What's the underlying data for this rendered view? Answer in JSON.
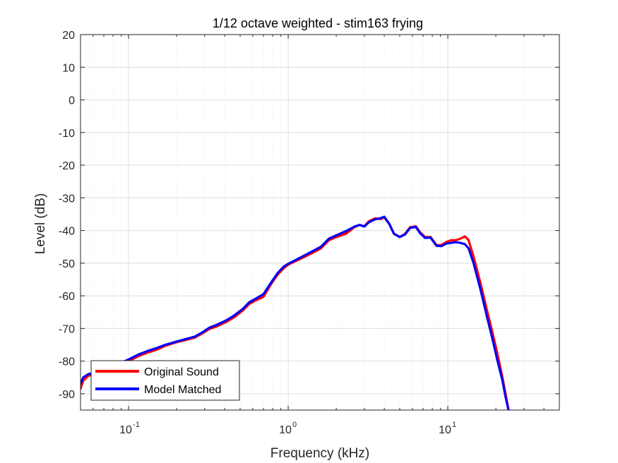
{
  "chart_data": {
    "type": "line",
    "title": "1/12 octave weighted - stim163 frying",
    "xlabel": "Frequency (kHz)",
    "ylabel": "Level (dB)",
    "xscale": "log",
    "xlim": [
      0.05,
      50
    ],
    "ylim": [
      -95,
      20
    ],
    "grid": true,
    "legend_position": "bottom-left",
    "x_ticks": [
      {
        "value": 0.1,
        "base": "10",
        "exp": "-1"
      },
      {
        "value": 1,
        "base": "10",
        "exp": "0"
      },
      {
        "value": 10,
        "base": "10",
        "exp": "1"
      }
    ],
    "y_ticks": [
      20,
      10,
      0,
      -10,
      -20,
      -30,
      -40,
      -50,
      -60,
      -70,
      -80,
      -90
    ],
    "y_tick_labels": [
      "20",
      "10",
      "0",
      "-10",
      "-20",
      "-30",
      "-40",
      "-50",
      "-60",
      "-70",
      "-80",
      "-90"
    ],
    "series": [
      {
        "name": "Original Sound",
        "color": "#ff0000",
        "x": [
          0.05,
          0.052,
          0.056,
          0.062,
          0.07,
          0.08,
          0.09,
          0.1,
          0.115,
          0.13,
          0.15,
          0.17,
          0.2,
          0.23,
          0.26,
          0.29,
          0.32,
          0.36,
          0.41,
          0.46,
          0.52,
          0.57,
          0.62,
          0.7,
          0.78,
          0.86,
          0.94,
          1.0,
          1.1,
          1.25,
          1.4,
          1.6,
          1.8,
          2.0,
          2.3,
          2.6,
          2.8,
          3.0,
          3.2,
          3.5,
          3.8,
          4.0,
          4.3,
          4.6,
          5.0,
          5.4,
          5.8,
          6.3,
          6.7,
          7.2,
          7.8,
          8.5,
          9.1,
          9.8,
          10.5,
          11.2,
          12.0,
          12.8,
          13.5,
          14.5,
          16.0,
          17.5,
          19.0,
          20.5,
          22.0,
          23.0,
          24.0
        ],
        "y": [
          -88.5,
          -86,
          -84.5,
          -84,
          -83,
          -82,
          -81,
          -80,
          -78.5,
          -77.5,
          -76.5,
          -75.3,
          -74.2,
          -73.5,
          -72.8,
          -71.5,
          -70.2,
          -69.3,
          -68,
          -66.5,
          -64.5,
          -62.5,
          -61.5,
          -60.3,
          -56.5,
          -53.5,
          -51.5,
          -50.5,
          -49.5,
          -48.2,
          -47,
          -45.5,
          -43,
          -42,
          -41,
          -39,
          -38.3,
          -38.7,
          -37.2,
          -36.3,
          -36.5,
          -36,
          -38,
          -41,
          -42,
          -41,
          -39,
          -38.7,
          -40.5,
          -42,
          -42,
          -44.5,
          -44.5,
          -43.5,
          -43,
          -43,
          -42.5,
          -41.8,
          -43,
          -48,
          -56,
          -64,
          -71,
          -78,
          -85,
          -90,
          -95
        ]
      },
      {
        "name": "Model Matched",
        "color": "#0000ff",
        "x": [
          0.05,
          0.052,
          0.056,
          0.062,
          0.07,
          0.08,
          0.09,
          0.1,
          0.115,
          0.13,
          0.15,
          0.17,
          0.2,
          0.23,
          0.26,
          0.29,
          0.32,
          0.36,
          0.41,
          0.46,
          0.52,
          0.57,
          0.62,
          0.7,
          0.78,
          0.86,
          0.94,
          1.0,
          1.1,
          1.25,
          1.4,
          1.6,
          1.8,
          2.0,
          2.3,
          2.6,
          2.8,
          3.0,
          3.2,
          3.5,
          3.8,
          4.0,
          4.3,
          4.6,
          5.0,
          5.4,
          5.8,
          6.3,
          6.7,
          7.2,
          7.8,
          8.5,
          9.1,
          9.8,
          10.5,
          11.2,
          12.0,
          12.8,
          13.5,
          14.5,
          16.0,
          17.5,
          19.0,
          20.5,
          22.0,
          23.0,
          24.0
        ],
        "y": [
          -87,
          -85,
          -84,
          -83.5,
          -82.5,
          -81.5,
          -80.5,
          -79.5,
          -78,
          -77,
          -76,
          -75,
          -74,
          -73.2,
          -72.5,
          -71.2,
          -69.8,
          -68.8,
          -67.5,
          -66,
          -64,
          -62,
          -61,
          -59.5,
          -56,
          -53,
          -51,
          -50.2,
          -49.2,
          -47.8,
          -46.5,
          -45,
          -42.5,
          -41.5,
          -40.2,
          -38.8,
          -38.3,
          -38.8,
          -37.5,
          -36.6,
          -36.2,
          -35.8,
          -38,
          -41,
          -42,
          -41.2,
          -39.2,
          -38.9,
          -40.8,
          -42.3,
          -42.2,
          -44.7,
          -44.8,
          -44,
          -43.8,
          -43.6,
          -43.8,
          -44.2,
          -45.5,
          -50,
          -58,
          -66,
          -73,
          -80,
          -86,
          -91,
          -95
        ]
      }
    ]
  }
}
